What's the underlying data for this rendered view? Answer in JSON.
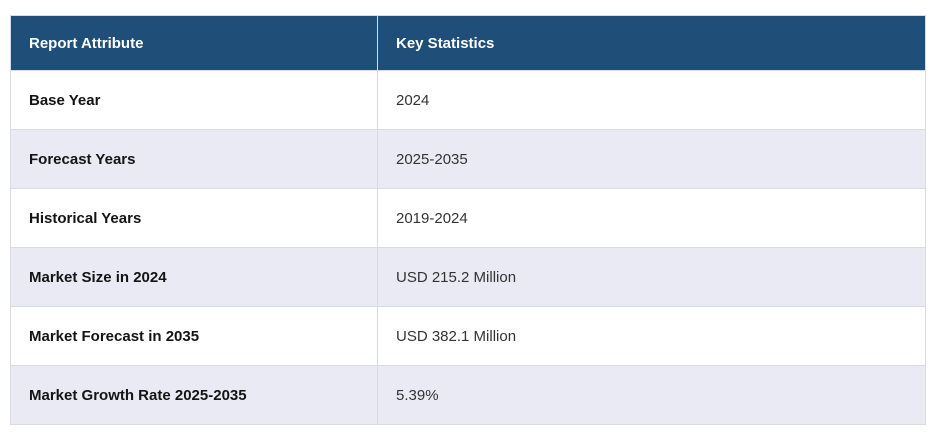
{
  "table": {
    "columns": [
      {
        "label": "Report Attribute"
      },
      {
        "label": "Key Statistics"
      }
    ],
    "rows": [
      {
        "attribute": "Base Year",
        "value": "2024"
      },
      {
        "attribute": "Forecast Years",
        "value": "2025-2035"
      },
      {
        "attribute": "Historical Years",
        "value": "2019-2024"
      },
      {
        "attribute": "Market Size in 2024",
        "value": "USD 215.2 Million"
      },
      {
        "attribute": "Market Forecast in 2035",
        "value": "USD 382.1 Million"
      },
      {
        "attribute": "Market Growth Rate 2025-2035",
        "value": "5.39%"
      }
    ],
    "colors": {
      "header_bg": "#1f4e79",
      "header_text": "#ffffff",
      "stripe_row_bg": "#e9eaf4",
      "plain_row_bg": "#ffffff",
      "border": "#d9dae3",
      "attribute_text": "#141414",
      "value_text": "#333333"
    }
  }
}
